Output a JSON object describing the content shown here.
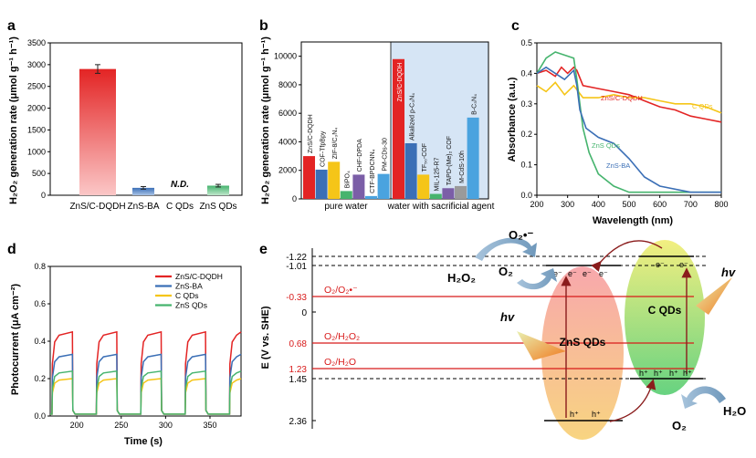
{
  "panel_letters": [
    "a",
    "b",
    "c",
    "d",
    "e"
  ],
  "chart_data": [
    {
      "id": "a",
      "type": "bar",
      "ylabel": "H₂O₂ generation rate (μmol g⁻¹ h⁻¹)",
      "categories": [
        "ZnS/C-DQDH",
        "ZnS-BA",
        "C QDs",
        "ZnS QDs"
      ],
      "values": [
        2900,
        170,
        0,
        220
      ],
      "errors": [
        100,
        30,
        0,
        30
      ],
      "colors": [
        "#e32424",
        "#3b6fb6",
        "#ffffff",
        "#46b46e"
      ],
      "annotations": [
        {
          "category": "C QDs",
          "text": "N.D."
        }
      ],
      "ylim": [
        0,
        3500
      ],
      "yticks": [
        0,
        500,
        1000,
        1500,
        2000,
        2500,
        3000,
        3500
      ]
    },
    {
      "id": "b",
      "type": "bar",
      "ylabel": "H₂O₂ generation rate (μmol g⁻¹ h⁻¹)",
      "groups": [
        "pure water",
        "water with sacrificial agent"
      ],
      "bars": [
        {
          "label": "ZnS/C-DQDH",
          "value": 3000,
          "color": "#e32424",
          "group": 0
        },
        {
          "label": "COF-TfpBpy",
          "value": 2050,
          "color": "#3b6fb6",
          "group": 0
        },
        {
          "label": "ZIF-8/C₃N₄",
          "value": 2600,
          "color": "#f5c518",
          "group": 0
        },
        {
          "label": "BiPO₄",
          "value": 550,
          "color": "#46b46e",
          "group": 0
        },
        {
          "label": "CHF-DPDA",
          "value": 1700,
          "color": "#7b5ea7",
          "group": 0
        },
        {
          "label": "CTF-BPDCNN₄",
          "value": 200,
          "color": "#4aa3df",
          "group": 0
        },
        {
          "label": "PM-CDs-30",
          "value": 1750,
          "color": "#4aa3df",
          "group": 0
        },
        {
          "label": "ZnS/C-DQDH",
          "value": 9800,
          "color": "#e32424",
          "group": 1
        },
        {
          "label": "Alkalized p-C₃N₄",
          "value": 3900,
          "color": "#3b6fb6",
          "group": 1
        },
        {
          "label": "TF₅₀-COF",
          "value": 1700,
          "color": "#f5c518",
          "group": 1
        },
        {
          "label": "MIL-125-R7",
          "value": 350,
          "color": "#46b46e",
          "group": 1
        },
        {
          "label": "TAPD-(Me)₂ COF",
          "value": 750,
          "color": "#7b5ea7",
          "group": 1
        },
        {
          "label": "M-CdS-10h",
          "value": 900,
          "color": "#9a9a9a",
          "group": 1
        },
        {
          "label": "B-C₃N₄",
          "value": 5700,
          "color": "#4aa3df",
          "group": 1
        }
      ],
      "ylim": [
        0,
        11000
      ],
      "yticks": [
        0,
        2000,
        4000,
        6000,
        8000,
        10000
      ]
    },
    {
      "id": "c",
      "type": "line",
      "xlabel": "Wavelength (nm)",
      "ylabel": "Absorbance (a.u.)",
      "xlim": [
        200,
        800
      ],
      "ylim": [
        0.0,
        0.5
      ],
      "xticks": [
        200,
        300,
        400,
        500,
        600,
        700,
        800
      ],
      "yticks": [
        0.0,
        0.1,
        0.2,
        0.3,
        0.4,
        0.5
      ],
      "series": [
        {
          "name": "ZnS/C-DQDH",
          "color": "#e32424",
          "x": [
            200,
            230,
            260,
            280,
            300,
            320,
            330,
            350,
            400,
            450,
            500,
            550,
            600,
            650,
            700,
            750,
            800
          ],
          "y": [
            0.4,
            0.41,
            0.39,
            0.42,
            0.4,
            0.42,
            0.41,
            0.36,
            0.35,
            0.34,
            0.33,
            0.31,
            0.29,
            0.28,
            0.26,
            0.25,
            0.24
          ]
        },
        {
          "name": "C QDs",
          "color": "#f5c518",
          "x": [
            200,
            230,
            260,
            290,
            320,
            350,
            400,
            450,
            500,
            550,
            600,
            650,
            700,
            750,
            800
          ],
          "y": [
            0.36,
            0.34,
            0.37,
            0.33,
            0.36,
            0.32,
            0.32,
            0.33,
            0.32,
            0.32,
            0.31,
            0.3,
            0.3,
            0.29,
            0.27
          ]
        },
        {
          "name": "ZnS QDs",
          "color": "#46b46e",
          "x": [
            200,
            230,
            260,
            290,
            320,
            330,
            340,
            350,
            370,
            400,
            450,
            500,
            600,
            700,
            800
          ],
          "y": [
            0.4,
            0.45,
            0.47,
            0.46,
            0.45,
            0.38,
            0.3,
            0.22,
            0.14,
            0.07,
            0.03,
            0.01,
            0.01,
            0.01,
            0.01
          ]
        },
        {
          "name": "ZnS-BA",
          "color": "#3b6fb6",
          "x": [
            200,
            230,
            260,
            290,
            320,
            330,
            340,
            360,
            400,
            450,
            500,
            550,
            600,
            700,
            800
          ],
          "y": [
            0.4,
            0.42,
            0.4,
            0.38,
            0.41,
            0.36,
            0.28,
            0.22,
            0.19,
            0.17,
            0.12,
            0.06,
            0.03,
            0.01,
            0.01
          ]
        }
      ]
    },
    {
      "id": "d",
      "type": "line",
      "xlabel": "Time (s)",
      "ylabel": "Photocurrent (μA cm⁻²)",
      "xlim": [
        170,
        385
      ],
      "ylim": [
        0.0,
        0.8
      ],
      "xticks": [
        200,
        250,
        300,
        350
      ],
      "yticks": [
        0.0,
        0.2,
        0.4,
        0.6,
        0.8
      ],
      "on_intervals": [
        [
          172,
          195
        ],
        [
          222,
          245
        ],
        [
          272,
          295
        ],
        [
          322,
          345
        ],
        [
          372,
          385
        ]
      ],
      "series": [
        {
          "name": "ZnS/C-DQDH",
          "color": "#e32424",
          "plateau": 0.45
        },
        {
          "name": "ZnS-BA",
          "color": "#3b6fb6",
          "plateau": 0.33
        },
        {
          "name": "C QDs",
          "color": "#f5c518",
          "plateau": 0.2
        },
        {
          "name": "ZnS QDs",
          "color": "#46b46e",
          "plateau": 0.24
        }
      ]
    },
    {
      "id": "e",
      "type": "diagram",
      "ylabel": "E (V vs. SHE)",
      "levels": [
        {
          "value": "-1.22",
          "style": "dashed"
        },
        {
          "value": "-1.01",
          "style": "dashed"
        },
        {
          "value": "-0.33",
          "style": "red",
          "label": "O₂/O₂•⁻"
        },
        {
          "value": "0",
          "style": "tick"
        },
        {
          "value": "0.68",
          "style": "red",
          "label": "O₂/H₂O₂"
        },
        {
          "value": "1.23",
          "style": "red",
          "label": "O₂/H₂O"
        },
        {
          "value": "1.45",
          "style": "dashed"
        },
        {
          "value": "2.36",
          "style": "solid"
        }
      ],
      "species": {
        "o2_radical": "O₂•⁻",
        "h2o2": "H₂O₂",
        "o2_top": "O₂",
        "o2_bottom": "O₂",
        "h2o": "H₂O",
        "hv": "hv",
        "zns": "ZnS QDs",
        "cqds": "C QDs",
        "e": "e⁻",
        "h": "h⁺"
      }
    }
  ]
}
